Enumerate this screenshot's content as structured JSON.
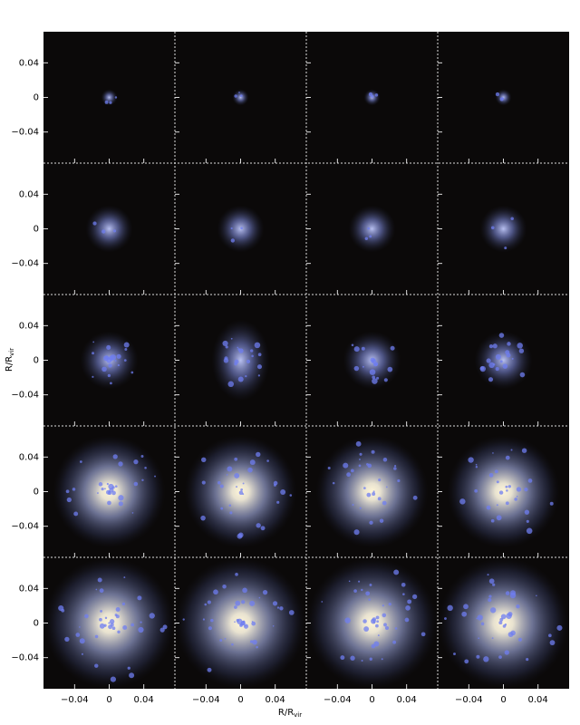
{
  "chart_data": {
    "type": "image-grid",
    "rows": 5,
    "columns": 4,
    "xlabel": "R/R",
    "xlabel_sub": "vir",
    "ylabel": "R/R",
    "ylabel_sub": "vir",
    "xlim": [
      -0.076,
      0.076
    ],
    "ylim": [
      -0.076,
      0.076
    ],
    "xticks": [
      {
        "value": -0.04,
        "label": "−0.04"
      },
      0,
      0.04
    ],
    "yticks": [
      {
        "value": -0.04,
        "label": "−0.04"
      },
      0,
      0.04
    ]
  }
}
